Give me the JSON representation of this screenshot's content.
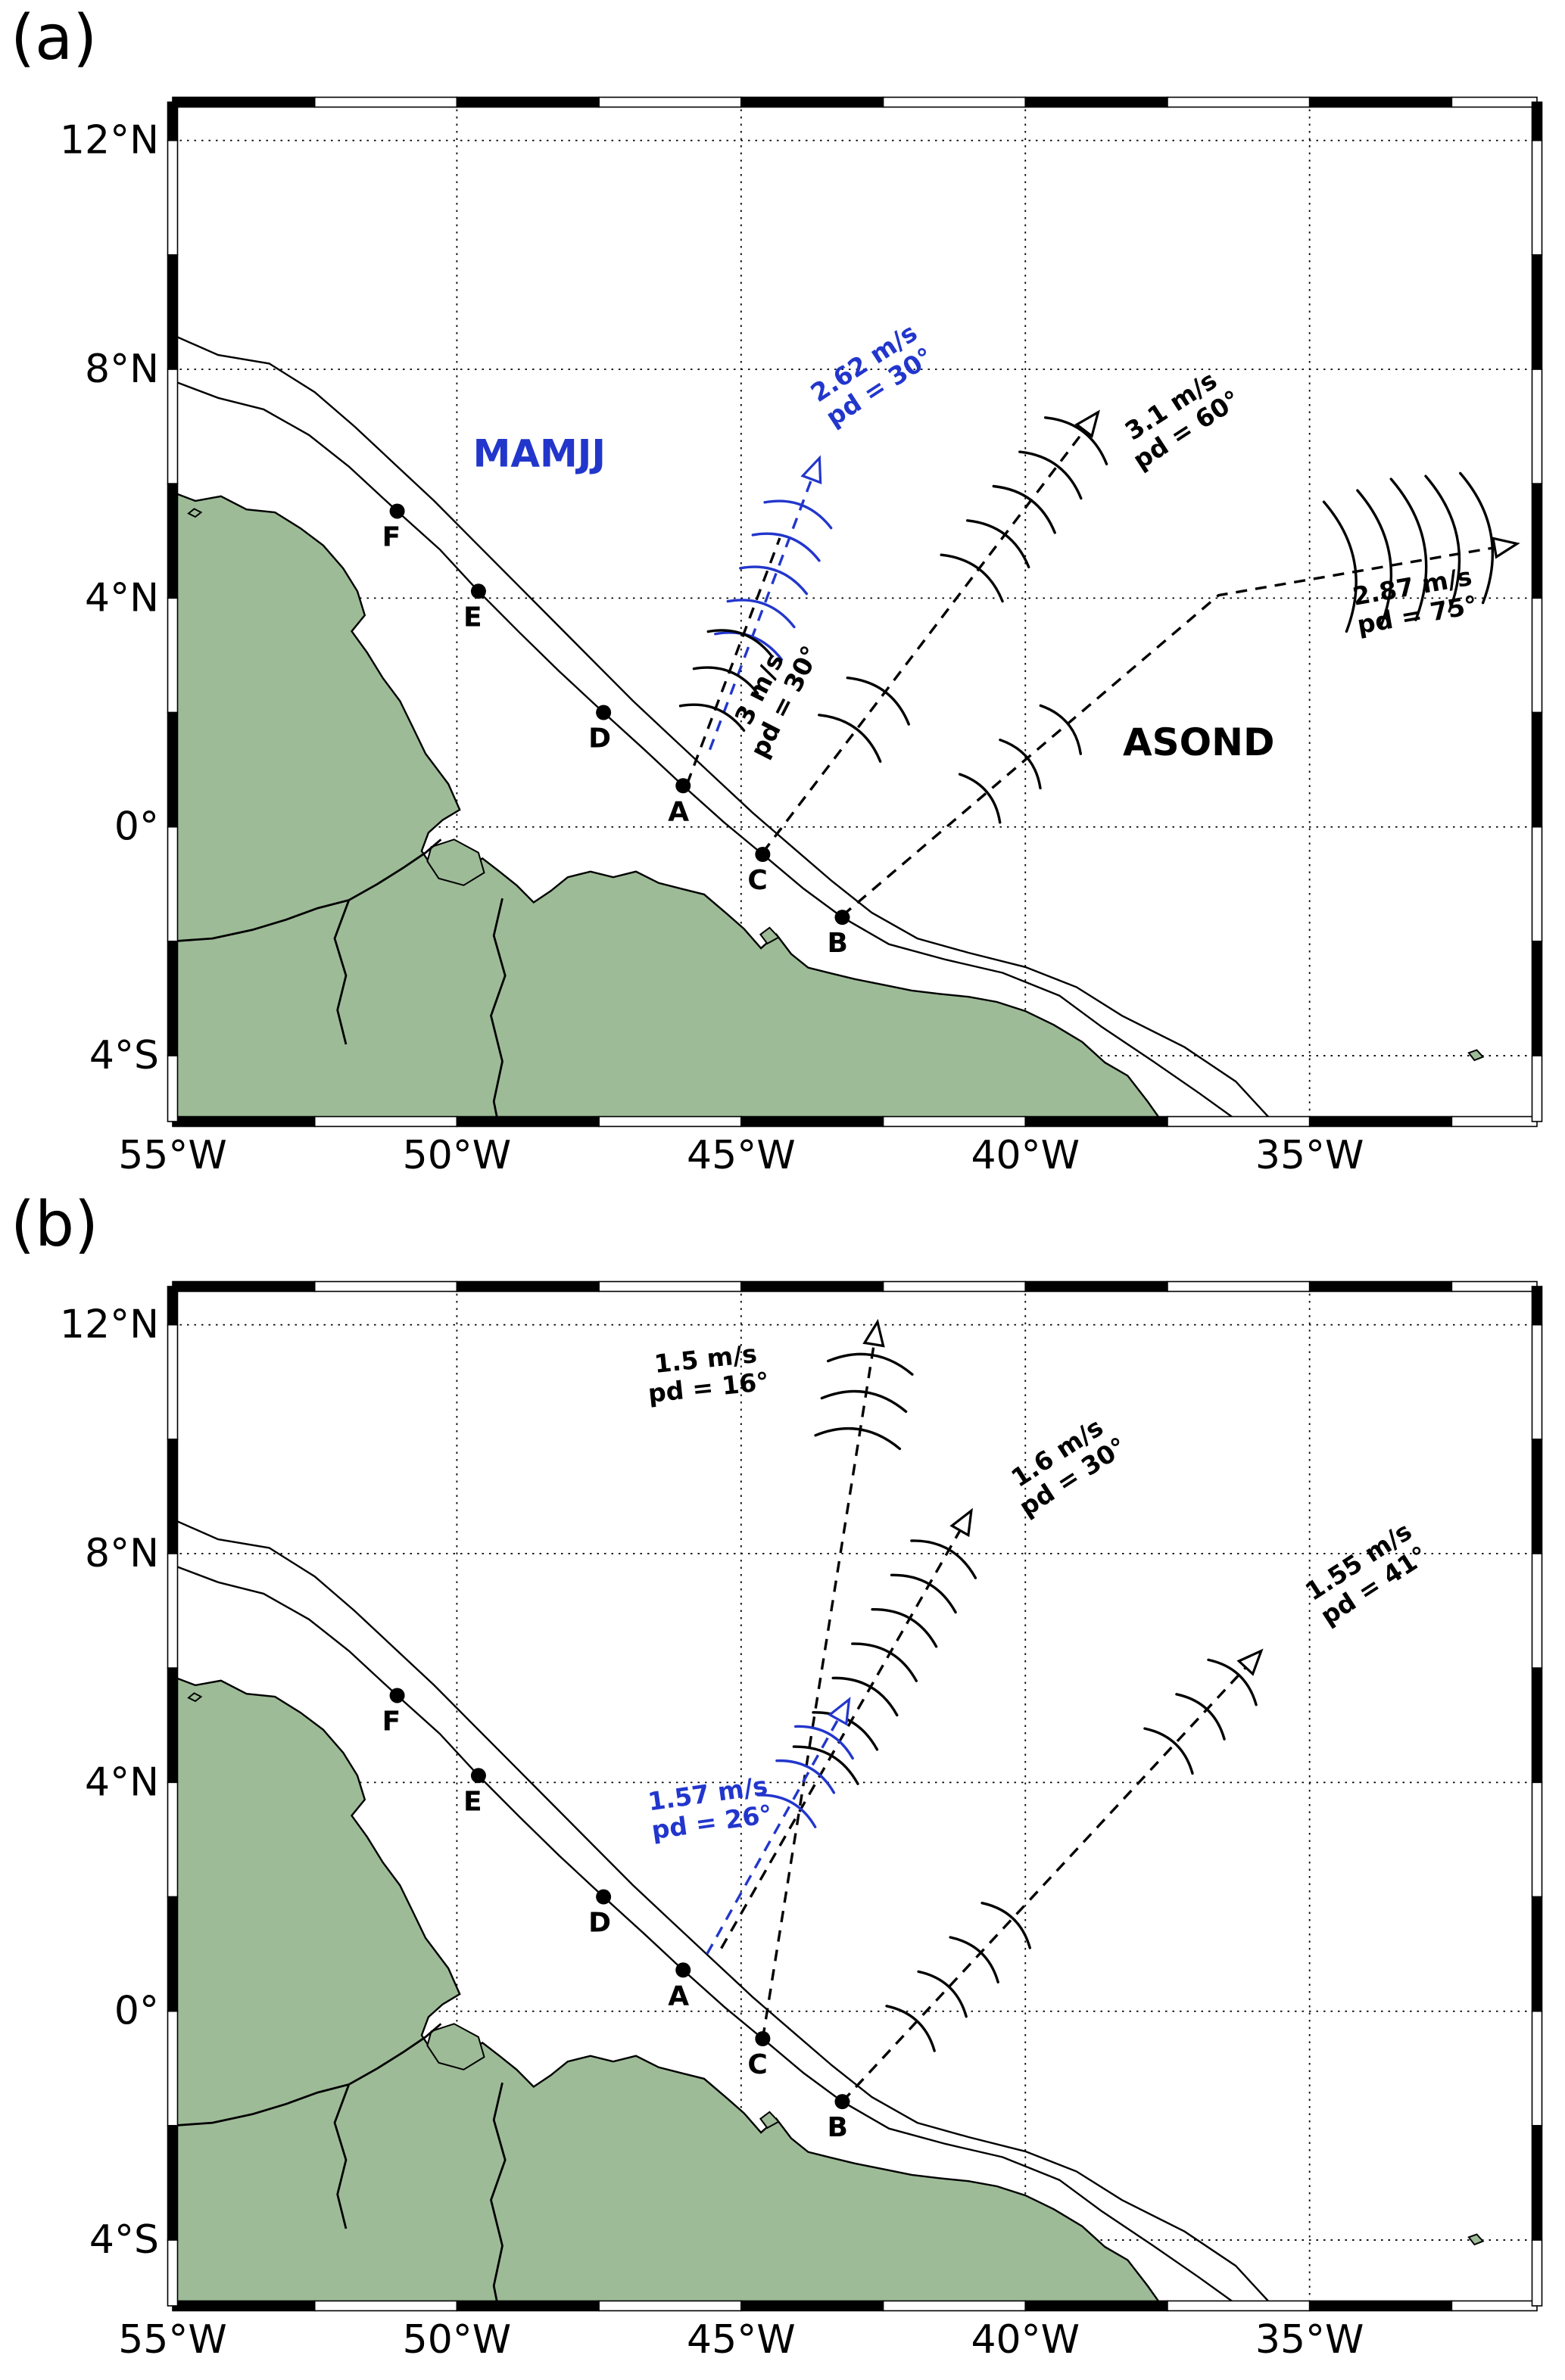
{
  "figure": {
    "panels": [
      {
        "label": "(a)",
        "season_labels": [
          {
            "text": "MAMJJ",
            "lon": -48.55,
            "lat": 6.3,
            "color": "#2236cc"
          },
          {
            "text": "ASOND",
            "lon": -36.95,
            "lat": 1.25,
            "color": "#000000"
          }
        ],
        "trajectories": [
          {
            "name": "mamjj-pd30",
            "color": "#2236cc",
            "arrow": true,
            "points": [
              [
                -45.55,
                1.35
              ],
              [
                -43.62,
                6.45
              ]
            ],
            "crest_angle": 21,
            "crest_len": 1.25,
            "crests": [
              [
                -44.87,
                3.15
              ],
              [
                -44.65,
                3.72
              ],
              [
                -44.43,
                4.3
              ],
              [
                -44.21,
                4.88
              ],
              [
                -44.0,
                5.45
              ]
            ],
            "label": {
              "lines": [
                "2.62 m/s",
                "pd = 30°"
              ],
              "lon": -42.7,
              "lat": 7.9,
              "rot": -33,
              "color": "#2236cc"
            }
          },
          {
            "name": "asond-pd30",
            "color": "#000000",
            "arrow": false,
            "points": [
              [
                -45.95,
                0.75
              ],
              [
                -44.32,
                5.05
              ]
            ],
            "crest_angle": 21,
            "crest_len": 1.2,
            "crests": [
              [
                -45.51,
                1.9
              ],
              [
                -45.27,
                2.55
              ],
              [
                -45.02,
                3.2
              ]
            ],
            "label": {
              "lines": [
                "3 m/s",
                "pd = 30°"
              ],
              "lon": -44.45,
              "lat": 2.3,
              "rot": -63,
              "color": "#000000"
            }
          },
          {
            "name": "asond-pd60",
            "color": "#000000",
            "arrow": true,
            "points": [
              [
                -44.62,
                -0.45
              ],
              [
                -38.72,
                7.25
              ]
            ],
            "crest_angle": 37,
            "crest_len": 1.35,
            "crests": [
              [
                -43.09,
                1.55
              ],
              [
                -42.59,
                2.2
              ],
              [
                -40.94,
                4.35
              ],
              [
                -40.48,
                4.95
              ],
              [
                -40.02,
                5.55
              ],
              [
                -39.56,
                6.15
              ],
              [
                -39.11,
                6.75
              ]
            ],
            "label": {
              "lines": [
                "3.1 m/s",
                "pd = 60°"
              ],
              "lon": -37.3,
              "lat": 7.15,
              "rot": -33,
              "color": "#000000"
            }
          },
          {
            "name": "asond-pd75",
            "color": "#000000",
            "arrow": true,
            "points": [
              [
                -43.22,
                -1.55
              ],
              [
                -36.6,
                4.05
              ],
              [
                -31.35,
                4.95
              ]
            ],
            "crest_angle": 50,
            "crest_len": 1.1,
            "crests": [
              [
                -40.8,
                0.5
              ],
              [
                -40.09,
                1.1
              ],
              [
                -39.38,
                1.7
              ],
              [
                -34.55,
                4.55,
                2.3,
                80
              ],
              [
                -33.95,
                4.7,
                2.4,
                80
              ],
              [
                -33.35,
                4.85,
                2.5,
                80
              ],
              [
                -32.75,
                4.95,
                2.4,
                80
              ],
              [
                -32.15,
                5.05,
                2.3,
                80
              ]
            ],
            "label": {
              "lines": [
                "2.87 m/s",
                "pd = 75°"
              ],
              "lon": -33.15,
              "lat": 3.95,
              "rot": -10,
              "color": "#000000"
            }
          }
        ]
      },
      {
        "label": "(b)",
        "season_labels": [],
        "trajectories": [
          {
            "name": "traj-pd16",
            "color": "#000000",
            "arrow": true,
            "points": [
              [
                -44.62,
                -0.48
              ],
              [
                -42.6,
                12.05
              ]
            ],
            "crest_angle": 9,
            "crest_len": 1.5,
            "crests": [
              [
                -42.95,
                9.95
              ],
              [
                -42.84,
                10.6
              ],
              [
                -42.73,
                11.25
              ]
            ],
            "label": {
              "lines": [
                "1.5 m/s",
                "pd = 16°"
              ],
              "lon": -45.6,
              "lat": 11.15,
              "rot": -6,
              "color": "#000000"
            }
          },
          {
            "name": "traj-pd30",
            "color": "#000000",
            "arrow": true,
            "points": [
              [
                -45.35,
                1.1
              ],
              [
                -40.95,
                8.75
              ]
            ],
            "crest_angle": 30,
            "crest_len": 1.3,
            "crests": [
              [
                -43.51,
                4.3
              ],
              [
                -43.17,
                4.9
              ],
              [
                -42.82,
                5.5
              ],
              [
                -42.48,
                6.1
              ],
              [
                -42.13,
                6.7
              ],
              [
                -41.79,
                7.3
              ],
              [
                -41.44,
                7.9
              ]
            ],
            "label": {
              "lines": [
                "1.6 m/s",
                "pd = 30°"
              ],
              "lon": -39.3,
              "lat": 9.55,
              "rot": -33,
              "color": "#000000"
            }
          },
          {
            "name": "traj-pd41",
            "color": "#000000",
            "arrow": true,
            "points": [
              [
                -43.22,
                -1.58
              ],
              [
                -35.85,
                6.3
              ]
            ],
            "crest_angle": 43,
            "crest_len": 1.15,
            "crests": [
              [
                -42.02,
                -0.3
              ],
              [
                -41.46,
                0.3
              ],
              [
                -40.9,
                0.9
              ],
              [
                -40.34,
                1.5
              ],
              [
                -37.48,
                4.55
              ],
              [
                -36.92,
                5.15
              ],
              [
                -36.36,
                5.75
              ]
            ],
            "label": {
              "lines": [
                "1.55 m/s",
                "pd = 41°"
              ],
              "lon": -34.0,
              "lat": 7.65,
              "rot": -33,
              "color": "#000000"
            }
          },
          {
            "name": "traj-pd26-blue",
            "color": "#2236cc",
            "arrow": true,
            "points": [
              [
                -45.6,
                1.0
              ],
              [
                -43.1,
                5.45
              ]
            ],
            "crest_angle": 29,
            "crest_len": 1.15,
            "crests": [
              [
                -44.2,
                3.5
              ],
              [
                -43.87,
                4.1
              ],
              [
                -43.54,
                4.7
              ]
            ],
            "label": {
              "lines": [
                "1.57 m/s",
                "pd = 26°"
              ],
              "lon": -45.55,
              "lat": 3.55,
              "rot": -8,
              "color": "#2236cc"
            }
          }
        ]
      }
    ]
  },
  "map": {
    "lon_min": -55,
    "lon_max": -31,
    "lat_max": 12.67,
    "lat_min": -5.15,
    "x_ticks": [
      {
        "lon": -55,
        "label": "55°W"
      },
      {
        "lon": -50,
        "label": "50°W"
      },
      {
        "lon": -45,
        "label": "45°W"
      },
      {
        "lon": -40,
        "label": "40°W"
      },
      {
        "lon": -35,
        "label": "35°W"
      }
    ],
    "y_ticks": [
      {
        "lat": 12,
        "label": "12°N"
      },
      {
        "lat": 8,
        "label": "8°N"
      },
      {
        "lat": 4,
        "label": "4°N"
      },
      {
        "lat": 0,
        "label": "0°"
      },
      {
        "lat": -4,
        "label": "4°S"
      }
    ],
    "grid_lons": [
      -50,
      -45,
      -40,
      -35
    ],
    "grid_lats": [
      12,
      8,
      4,
      0,
      -4
    ],
    "stations": [
      {
        "id": "F",
        "lon": -51.05,
        "lat": 5.52
      },
      {
        "id": "E",
        "lon": -49.62,
        "lat": 4.12
      },
      {
        "id": "D",
        "lon": -47.42,
        "lat": 2.0
      },
      {
        "id": "A",
        "lon": -46.02,
        "lat": 0.72
      },
      {
        "id": "C",
        "lon": -44.62,
        "lat": -0.48
      },
      {
        "id": "B",
        "lon": -43.22,
        "lat": -1.58
      }
    ],
    "coast": [
      [
        -55,
        5.85
      ],
      [
        -54.6,
        5.7
      ],
      [
        -54.15,
        5.78
      ],
      [
        -53.7,
        5.55
      ],
      [
        -53.2,
        5.5
      ],
      [
        -52.75,
        5.22
      ],
      [
        -52.35,
        4.92
      ],
      [
        -52.0,
        4.52
      ],
      [
        -51.75,
        4.12
      ],
      [
        -51.62,
        3.7
      ],
      [
        -51.85,
        3.42
      ],
      [
        -51.58,
        3.05
      ],
      [
        -51.3,
        2.6
      ],
      [
        -51.0,
        2.2
      ],
      [
        -50.78,
        1.75
      ],
      [
        -50.55,
        1.28
      ],
      [
        -50.15,
        0.75
      ],
      [
        -49.95,
        0.3
      ],
      [
        -50.25,
        0.12
      ],
      [
        -50.5,
        -0.1
      ],
      [
        -50.62,
        -0.42
      ],
      [
        -50.42,
        -0.72
      ],
      [
        -50.12,
        -0.58
      ],
      [
        -49.82,
        -0.72
      ],
      [
        -49.55,
        -0.55
      ],
      [
        -49.25,
        -0.78
      ],
      [
        -48.95,
        -1.02
      ],
      [
        -48.65,
        -1.32
      ],
      [
        -48.35,
        -1.12
      ],
      [
        -48.05,
        -0.88
      ],
      [
        -47.65,
        -0.78
      ],
      [
        -47.25,
        -0.88
      ],
      [
        -46.85,
        -0.78
      ],
      [
        -46.45,
        -0.98
      ],
      [
        -46.05,
        -1.08
      ],
      [
        -45.65,
        -1.18
      ],
      [
        -45.25,
        -1.52
      ],
      [
        -44.95,
        -1.78
      ],
      [
        -44.65,
        -2.12
      ],
      [
        -44.38,
        -1.88
      ],
      [
        -44.12,
        -2.22
      ],
      [
        -43.82,
        -2.46
      ],
      [
        -43.42,
        -2.56
      ],
      [
        -43.0,
        -2.66
      ],
      [
        -42.5,
        -2.76
      ],
      [
        -42.0,
        -2.86
      ],
      [
        -41.5,
        -2.92
      ],
      [
        -41.0,
        -2.97
      ],
      [
        -40.5,
        -3.06
      ],
      [
        -40.0,
        -3.22
      ],
      [
        -39.5,
        -3.46
      ],
      [
        -39.0,
        -3.76
      ],
      [
        -38.6,
        -4.12
      ],
      [
        -38.2,
        -4.35
      ],
      [
        -37.85,
        -4.8
      ],
      [
        -37.6,
        -5.15
      ],
      [
        -55,
        -5.15
      ]
    ],
    "islands": [
      [
        [
          -50.45,
          -0.35
        ],
        [
          -50.05,
          -0.22
        ],
        [
          -49.62,
          -0.45
        ],
        [
          -49.52,
          -0.8
        ],
        [
          -49.88,
          -1.02
        ],
        [
          -50.32,
          -0.9
        ],
        [
          -50.52,
          -0.6
        ]
      ],
      [
        [
          -44.66,
          -1.88
        ],
        [
          -44.5,
          -1.76
        ],
        [
          -44.34,
          -1.93
        ],
        [
          -44.54,
          -2.04
        ]
      ],
      [
        [
          -54.72,
          5.48
        ],
        [
          -54.6,
          5.42
        ],
        [
          -54.5,
          5.5
        ],
        [
          -54.62,
          5.56
        ]
      ],
      [
        [
          -32.2,
          -3.95
        ],
        [
          -32.06,
          -3.9
        ],
        [
          -31.95,
          -4.02
        ],
        [
          -32.1,
          -4.08
        ]
      ]
    ],
    "rivers": [
      [
        [
          -55,
          -2.0
        ],
        [
          -54.3,
          -1.95
        ],
        [
          -53.6,
          -1.8
        ],
        [
          -53.0,
          -1.62
        ],
        [
          -52.45,
          -1.42
        ],
        [
          -51.9,
          -1.28
        ],
        [
          -51.4,
          -1.0
        ],
        [
          -50.95,
          -0.72
        ],
        [
          -50.55,
          -0.45
        ],
        [
          -50.28,
          -0.22
        ]
      ],
      [
        [
          -49.2,
          -1.25
        ],
        [
          -49.35,
          -1.9
        ],
        [
          -49.15,
          -2.6
        ],
        [
          -49.4,
          -3.3
        ],
        [
          -49.2,
          -4.1
        ],
        [
          -49.35,
          -4.8
        ],
        [
          -49.28,
          -5.15
        ]
      ],
      [
        [
          -51.9,
          -1.28
        ],
        [
          -52.15,
          -1.95
        ],
        [
          -51.95,
          -2.6
        ],
        [
          -52.1,
          -3.2
        ],
        [
          -51.95,
          -3.8
        ]
      ]
    ],
    "contours": [
      [
        [
          -55,
          8.6
        ],
        [
          -54.2,
          8.25
        ],
        [
          -53.3,
          8.1
        ],
        [
          -52.5,
          7.6
        ],
        [
          -51.8,
          7.0
        ],
        [
          -51.1,
          6.35
        ],
        [
          -50.4,
          5.7
        ],
        [
          -49.7,
          5.0
        ],
        [
          -49.0,
          4.3
        ],
        [
          -48.3,
          3.6
        ],
        [
          -47.6,
          2.9
        ],
        [
          -46.9,
          2.2
        ],
        [
          -46.2,
          1.55
        ],
        [
          -45.5,
          0.9
        ],
        [
          -44.8,
          0.25
        ],
        [
          -44.1,
          -0.35
        ],
        [
          -43.4,
          -0.95
        ],
        [
          -42.7,
          -1.5
        ],
        [
          -41.9,
          -1.95
        ],
        [
          -41.0,
          -2.2
        ],
        [
          -40.0,
          -2.45
        ],
        [
          -39.1,
          -2.8
        ],
        [
          -38.3,
          -3.3
        ],
        [
          -37.2,
          -3.85
        ],
        [
          -36.3,
          -4.45
        ],
        [
          -35.65,
          -5.15
        ]
      ],
      [
        [
          -55,
          7.8
        ],
        [
          -54.2,
          7.5
        ],
        [
          -53.4,
          7.3
        ],
        [
          -52.6,
          6.85
        ],
        [
          -51.9,
          6.3
        ],
        [
          -51.05,
          5.52
        ],
        [
          -50.3,
          4.85
        ],
        [
          -49.62,
          4.12
        ],
        [
          -48.9,
          3.4
        ],
        [
          -48.2,
          2.72
        ],
        [
          -47.42,
          2.0
        ],
        [
          -46.7,
          1.35
        ],
        [
          -46.02,
          0.72
        ],
        [
          -45.3,
          0.08
        ],
        [
          -44.62,
          -0.48
        ],
        [
          -43.9,
          -1.08
        ],
        [
          -43.22,
          -1.58
        ],
        [
          -42.4,
          -2.05
        ],
        [
          -41.4,
          -2.32
        ],
        [
          -40.4,
          -2.55
        ],
        [
          -39.4,
          -2.95
        ],
        [
          -38.65,
          -3.5
        ],
        [
          -37.75,
          -4.1
        ],
        [
          -36.95,
          -4.65
        ],
        [
          -36.25,
          -5.15
        ]
      ]
    ],
    "colors": {
      "land": "#9dbb97",
      "water": "#ffffff",
      "outline": "#000000",
      "blue": "#2236cc"
    }
  }
}
